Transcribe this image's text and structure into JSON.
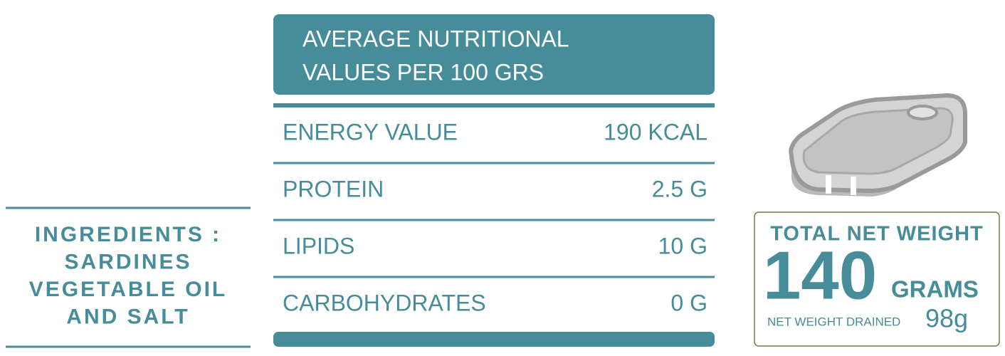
{
  "ingredients": {
    "lines": [
      "INGREDIENTS :",
      "SARDINES",
      "VEGETABLE OIL",
      "AND SALT"
    ]
  },
  "nutrition": {
    "header": [
      "AVERAGE NUTRITIONAL",
      "VALUES PER 100 GRS"
    ],
    "rows": [
      [
        "ENERGY VALUE",
        "190 KCAL"
      ],
      [
        "PROTEIN",
        "2.5 G"
      ],
      [
        "LIPIDS",
        "10 G"
      ],
      [
        "CARBOHYDRATES",
        "0 G"
      ]
    ]
  },
  "weight": {
    "title": "TOTAL NET WEIGHT",
    "amount": "140",
    "unit": "GRAMS",
    "drained_label": "NET WEIGHT DRAINED",
    "drained_value": "98g"
  }
}
